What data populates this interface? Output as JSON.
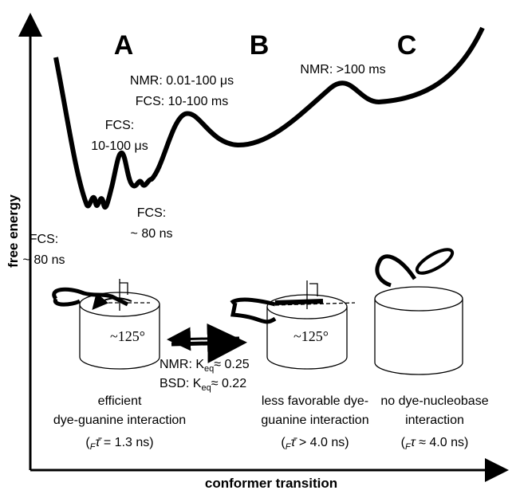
{
  "axes": {
    "y_label": "free energy",
    "x_label": "conformer transition"
  },
  "states": [
    {
      "letter": "A",
      "caption": [
        "efficient",
        "dye-guanine interaction",
        [
          "(",
          "F",
          "τ̄",
          " = 1.3 ns)"
        ]
      ],
      "angle": "~125°"
    },
    {
      "letter": "B",
      "caption": [
        "less favorable dye-",
        "guanine interaction",
        [
          "(",
          "F",
          "τ̄",
          " > 4.0 ns)"
        ]
      ],
      "angle": "~125°"
    },
    {
      "letter": "C",
      "caption": [
        "no dye-nucleobase",
        "interaction",
        [
          "(",
          "F",
          "τ",
          " ≈ 4.0 ns)"
        ]
      ]
    }
  ],
  "annotations": {
    "barrier_ab": [
      "NMR: 0.01-100 μs",
      "FCS: 10-100 ms"
    ],
    "barrier_bc": "NMR: >100 ms",
    "inner_barrier": [
      "FCS:",
      "10-100 μs"
    ],
    "right_well": [
      "FCS:",
      "~ 80 ns"
    ],
    "left_well": [
      "FCS:",
      "~ 80 ns"
    ],
    "equilibrium": [
      [
        "NMR: K",
        "eq",
        "≈ 0.25"
      ],
      [
        "BSD: K",
        "eq",
        "≈ 0.22"
      ]
    ]
  }
}
